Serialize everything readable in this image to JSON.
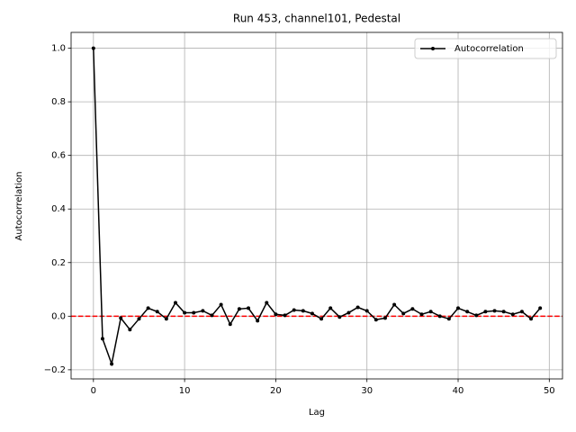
{
  "chart_data": {
    "type": "line",
    "title": "Run 453, channel101, Pedestal",
    "x_label": "Lag",
    "y_label": "Autocorrelation",
    "x": [
      0,
      1,
      2,
      3,
      4,
      5,
      6,
      7,
      8,
      9,
      10,
      11,
      12,
      13,
      14,
      15,
      16,
      17,
      18,
      19,
      20,
      21,
      22,
      23,
      24,
      25,
      26,
      27,
      28,
      29,
      30,
      31,
      32,
      33,
      34,
      35,
      36,
      37,
      38,
      39,
      40,
      41,
      42,
      43,
      44,
      45,
      46,
      47,
      48,
      49
    ],
    "series": [
      {
        "name": "Autocorrelation",
        "color": "#000000",
        "values": [
          1.0,
          -0.084,
          -0.178,
          -0.007,
          -0.05,
          -0.01,
          0.03,
          0.017,
          -0.01,
          0.05,
          0.013,
          0.013,
          0.02,
          0.003,
          0.043,
          -0.03,
          0.027,
          0.03,
          -0.017,
          0.05,
          0.007,
          0.003,
          0.023,
          0.02,
          0.01,
          -0.01,
          0.03,
          -0.003,
          0.013,
          0.033,
          0.02,
          -0.013,
          -0.007,
          0.043,
          0.01,
          0.027,
          0.007,
          0.017,
          0.0,
          -0.01,
          0.03,
          0.017,
          0.003,
          0.017,
          0.02,
          0.017,
          0.007,
          0.017,
          -0.01,
          0.03
        ]
      }
    ],
    "xlim": [
      -2.45,
      51.45
    ],
    "ylim": [
      -0.234,
      1.059
    ],
    "xticks": [
      0,
      10,
      20,
      30,
      40,
      50
    ],
    "yticks": [
      {
        "value": -0.2,
        "label": "−0.2"
      },
      {
        "value": 0,
        "label": "0.0"
      },
      {
        "value": 0.2,
        "label": "0.2"
      },
      {
        "value": 0.4,
        "label": "0.4"
      },
      {
        "value": 0.6,
        "label": "0.6"
      },
      {
        "value": 0.8,
        "label": "0.8"
      },
      {
        "value": 1.0,
        "label": "1.0"
      }
    ],
    "hline": {
      "value": 0,
      "color": "#ff0000"
    },
    "grid": true,
    "legend": "upper right"
  }
}
